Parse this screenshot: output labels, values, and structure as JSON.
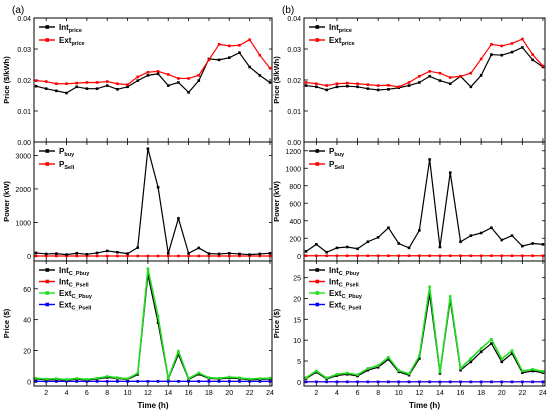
{
  "figure": {
    "panel_labels": [
      "(a)",
      "(b)"
    ],
    "x_axis_label": "Time (h)",
    "x_ticks": [
      2,
      4,
      6,
      8,
      10,
      12,
      14,
      16,
      18,
      20,
      22,
      24
    ]
  },
  "chart_data": [
    {
      "type": "line",
      "panel": "(a)",
      "subplot": "price",
      "ylabel": "Price ($/kWh)",
      "ylim": [
        0.0,
        0.04
      ],
      "yticks": [
        0.0,
        0.01,
        0.02,
        0.03,
        0.04
      ],
      "ytick_labels": [
        "0.00",
        "0.01",
        "0.02",
        "0.03",
        "0.04"
      ],
      "legend_position": "top-left",
      "x": [
        1,
        2,
        3,
        4,
        5,
        6,
        7,
        8,
        9,
        10,
        11,
        12,
        13,
        14,
        15,
        16,
        17,
        18,
        19,
        20,
        21,
        22,
        23,
        24
      ],
      "series": [
        {
          "name": "Int",
          "sub": "price",
          "color": "#000000",
          "values": [
            0.018,
            0.0172,
            0.0165,
            0.0158,
            0.0178,
            0.0172,
            0.0172,
            0.0182,
            0.017,
            0.0178,
            0.0198,
            0.0215,
            0.022,
            0.0182,
            0.0192,
            0.016,
            0.0198,
            0.0268,
            0.0265,
            0.0272,
            0.0288,
            0.0242,
            0.0215,
            0.0192
          ]
        },
        {
          "name": "Ext",
          "sub": "price",
          "color": "#ff0000",
          "values": [
            0.0198,
            0.0195,
            0.0188,
            0.0188,
            0.019,
            0.0192,
            0.0192,
            0.0195,
            0.0188,
            0.0185,
            0.021,
            0.0225,
            0.0228,
            0.0218,
            0.0205,
            0.0205,
            0.0215,
            0.0265,
            0.0315,
            0.031,
            0.0312,
            0.033,
            0.028,
            0.0238
          ]
        }
      ]
    },
    {
      "type": "line",
      "panel": "(a)",
      "subplot": "power",
      "ylabel": "Power (kW)",
      "ylim": [
        -150,
        3400
      ],
      "yticks": [
        0,
        1000,
        2000,
        3000
      ],
      "ytick_labels": [
        "0",
        "1000",
        "2000",
        "3000"
      ],
      "legend_position": "top-left",
      "x": [
        1,
        2,
        3,
        4,
        5,
        6,
        7,
        8,
        9,
        10,
        11,
        12,
        13,
        14,
        15,
        16,
        17,
        18,
        19,
        20,
        21,
        22,
        23,
        24
      ],
      "series": [
        {
          "name": "P",
          "sub": "buy",
          "color": "#000000",
          "values": [
            90,
            60,
            70,
            40,
            80,
            50,
            90,
            150,
            110,
            70,
            250,
            3200,
            2050,
            80,
            1120,
            80,
            240,
            70,
            60,
            80,
            60,
            40,
            60,
            80
          ]
        },
        {
          "name": "P",
          "sub": "Sell",
          "color": "#ff0000",
          "values": [
            0,
            0,
            0,
            0,
            0,
            0,
            0,
            0,
            0,
            0,
            0,
            0,
            0,
            0,
            0,
            0,
            0,
            0,
            0,
            0,
            0,
            0,
            0,
            0
          ]
        }
      ]
    },
    {
      "type": "line",
      "panel": "(a)",
      "subplot": "cost",
      "ylabel": "Price ($)",
      "ylim": [
        -3,
        78
      ],
      "yticks": [
        0,
        20,
        40,
        60
      ],
      "ytick_labels": [
        "0",
        "20",
        "40",
        "60"
      ],
      "legend_position": "top-left",
      "x": [
        1,
        2,
        3,
        4,
        5,
        6,
        7,
        8,
        9,
        10,
        11,
        12,
        13,
        14,
        15,
        16,
        17,
        18,
        19,
        20,
        21,
        22,
        23,
        24
      ],
      "series": [
        {
          "name": "Int",
          "sub": "C_Pbuy",
          "color": "#000000",
          "values": [
            1.5,
            1.0,
            1.2,
            0.8,
            1.4,
            0.9,
            1.5,
            2.5,
            1.9,
            1.2,
            4.5,
            69,
            38,
            1.5,
            17.5,
            1.3,
            4.6,
            1.9,
            1.6,
            2.2,
            1.8,
            1.0,
            1.3,
            1.6
          ]
        },
        {
          "name": "Int",
          "sub": "C_Psell",
          "color": "#ff0000",
          "values": [
            0,
            0,
            0,
            0,
            0,
            0,
            0,
            0,
            0,
            0,
            0,
            0,
            0,
            0,
            0,
            0,
            0,
            0,
            0,
            0,
            0,
            0,
            0,
            0
          ]
        },
        {
          "name": "Ext",
          "sub": "C_Pbuy",
          "color": "#22dd22",
          "values": [
            2.0,
            1.5,
            1.7,
            1.2,
            1.9,
            1.3,
            2.0,
            3.2,
            2.4,
            1.7,
            5.3,
            73,
            42,
            2.0,
            19.5,
            1.8,
            5.4,
            2.4,
            2.0,
            2.8,
            2.3,
            1.5,
            1.8,
            2.1
          ]
        },
        {
          "name": "Ext",
          "sub": "C_Psell",
          "color": "#0000ff",
          "values": [
            0,
            0,
            0,
            0,
            0,
            0,
            0,
            0,
            0,
            0,
            0,
            0,
            0,
            0,
            0,
            0,
            0,
            0,
            0,
            0,
            0,
            0,
            0,
            0
          ]
        }
      ]
    },
    {
      "type": "line",
      "panel": "(b)",
      "subplot": "price",
      "ylabel": "Price ($/kWh)",
      "ylim": [
        0.0,
        0.04
      ],
      "yticks": [
        0.0,
        0.01,
        0.02,
        0.03,
        0.04
      ],
      "ytick_labels": [
        "0.00",
        "0.01",
        "0.02",
        "0.03",
        "0.04"
      ],
      "legend_position": "top-left",
      "x": [
        1,
        2,
        3,
        4,
        5,
        6,
        7,
        8,
        9,
        10,
        11,
        12,
        13,
        14,
        15,
        16,
        17,
        18,
        19,
        20,
        21,
        22,
        23,
        24
      ],
      "series": [
        {
          "name": "Int",
          "sub": "price",
          "color": "#000000",
          "values": [
            0.0182,
            0.0178,
            0.0168,
            0.0178,
            0.018,
            0.0178,
            0.0172,
            0.0168,
            0.017,
            0.0175,
            0.0182,
            0.0192,
            0.0212,
            0.0198,
            0.0188,
            0.0212,
            0.0178,
            0.0215,
            0.0282,
            0.028,
            0.029,
            0.0305,
            0.0265,
            0.0242
          ]
        },
        {
          "name": "Ext",
          "sub": "price",
          "color": "#ff0000",
          "values": [
            0.0192,
            0.0188,
            0.0182,
            0.0188,
            0.019,
            0.0188,
            0.0185,
            0.0182,
            0.0183,
            0.0178,
            0.0192,
            0.0212,
            0.0228,
            0.0222,
            0.0208,
            0.0212,
            0.0222,
            0.0268,
            0.0315,
            0.031,
            0.0318,
            0.0332,
            0.0282,
            0.0245
          ]
        }
      ]
    },
    {
      "type": "line",
      "panel": "(b)",
      "subplot": "power",
      "ylabel": "Power (kW)",
      "ylim": [
        -60,
        1300
      ],
      "yticks": [
        0,
        200,
        400,
        600,
        800,
        1000,
        1200
      ],
      "ytick_labels": [
        "0",
        "200",
        "400",
        "600",
        "800",
        "1000",
        "1200"
      ],
      "legend_position": "top-left",
      "x": [
        1,
        2,
        3,
        4,
        5,
        6,
        7,
        8,
        9,
        10,
        11,
        12,
        13,
        14,
        15,
        16,
        17,
        18,
        19,
        20,
        21,
        22,
        23,
        24
      ],
      "series": [
        {
          "name": "P",
          "sub": "buy",
          "color": "#000000",
          "values": [
            50,
            130,
            40,
            90,
            100,
            80,
            160,
            210,
            320,
            140,
            90,
            290,
            1100,
            100,
            950,
            160,
            230,
            260,
            320,
            180,
            230,
            110,
            140,
            130
          ]
        },
        {
          "name": "P",
          "sub": "Sell",
          "color": "#ff0000",
          "values": [
            0,
            0,
            0,
            0,
            0,
            0,
            0,
            0,
            0,
            0,
            0,
            0,
            0,
            0,
            0,
            0,
            0,
            0,
            0,
            0,
            0,
            0,
            0,
            0
          ]
        }
      ]
    },
    {
      "type": "line",
      "panel": "(b)",
      "subplot": "cost",
      "ylabel": "Price ($)",
      "ylim": [
        -1,
        29
      ],
      "yticks": [
        0,
        5,
        10,
        15,
        20,
        25
      ],
      "ytick_labels": [
        "0",
        "5",
        "10",
        "15",
        "20",
        "25"
      ],
      "legend_position": "top-left",
      "x": [
        1,
        2,
        3,
        4,
        5,
        6,
        7,
        8,
        9,
        10,
        11,
        12,
        13,
        14,
        15,
        16,
        17,
        18,
        19,
        20,
        21,
        22,
        23,
        24
      ],
      "series": [
        {
          "name": "Int",
          "sub": "C_Pbuy",
          "color": "#000000",
          "values": [
            0.8,
            2.3,
            0.7,
            1.5,
            1.8,
            1.4,
            2.8,
            3.5,
            5.4,
            2.4,
            1.6,
            5.6,
            21,
            2.0,
            19.5,
            2.8,
            4.8,
            7.2,
            9.2,
            4.8,
            6.8,
            2.2,
            2.6,
            2.2
          ]
        },
        {
          "name": "Int",
          "sub": "C_Psell",
          "color": "#ff0000",
          "values": [
            0,
            0,
            0,
            0,
            0,
            0,
            0,
            0,
            0,
            0,
            0,
            0,
            0,
            0,
            0,
            0,
            0,
            0,
            0,
            0,
            0,
            0,
            0,
            0
          ]
        },
        {
          "name": "Ext",
          "sub": "C_Pbuy",
          "color": "#22dd22",
          "values": [
            1.0,
            2.6,
            0.9,
            1.8,
            2.1,
            1.7,
            3.2,
            3.9,
            5.9,
            2.7,
            1.9,
            6.2,
            22.8,
            2.3,
            20.5,
            3.2,
            5.6,
            8.0,
            10.2,
            5.5,
            7.5,
            2.6,
            3.0,
            2.5
          ]
        },
        {
          "name": "Ext",
          "sub": "C_Psell",
          "color": "#0000ff",
          "values": [
            0,
            0,
            0,
            0,
            0,
            0,
            0,
            0,
            0,
            0,
            0,
            0,
            0,
            0,
            0,
            0,
            0,
            0,
            0,
            0,
            0,
            0,
            0,
            0
          ]
        }
      ]
    }
  ]
}
